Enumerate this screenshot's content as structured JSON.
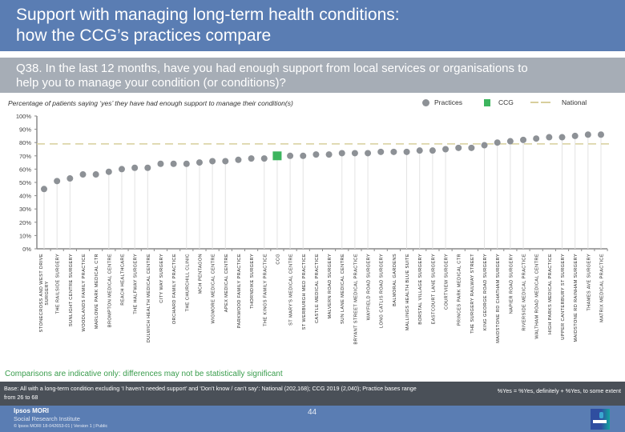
{
  "header": {
    "title_line1": "Support with managing long-term health conditions:",
    "title_line2": "how the CCG’s practices compare"
  },
  "question": {
    "line1": "Q38. In the last 12 months, have you had enough support from local services or organisations to",
    "line2": "help you to manage your condition (or conditions)?"
  },
  "legend": {
    "practices": "Practices",
    "ccg": "CCG",
    "national": "National"
  },
  "colors": {
    "practice": "#8d9196",
    "ccg": "#3db55e",
    "national": "#d8cf9c",
    "stem": "#e3e3e3",
    "axis": "#8a8a8a"
  },
  "chart_data": {
    "type": "scatter",
    "title": "Percentage of patients saying ‘yes’ they have had enough support to manage their condition(s)",
    "xlabel": "",
    "ylabel": "",
    "ylim": [
      0,
      100
    ],
    "yticks": [
      "0%",
      "10%",
      "20%",
      "30%",
      "40%",
      "50%",
      "60%",
      "70%",
      "80%",
      "90%",
      "100%"
    ],
    "grid": false,
    "legend_position": "top-right",
    "national_value": 79,
    "categories": [
      "STONECROSS AND WEST DRIVE SURGERY",
      "THE RAILSIDE SURGERY",
      "SUNLIGHT CENTRE SURGERY",
      "WOODLANDS FAMILY PRACTICE",
      "MARLOWE PARK MEDICAL CTR",
      "BROMPTON MEDICAL CENTRE",
      "REACH HEALTHCARE",
      "THE HALFWAY SURGERY",
      "DULWICH HEALTH MEDICAL CENTRE",
      "CITY WAY SURGERY",
      "ORCHARD FAMILY PRACTICE",
      "THE CHURCHILL CLINIC",
      "MCH PENTAGON",
      "WIGMORE MEDICAL CENTRE",
      "APEX MEDICAL CENTRE",
      "PARKWOOD FAMILY PRACTICE",
      "THORNDIKE SURGERY",
      "THE KINGS FAMILY PRACTICE",
      "CCG",
      "ST MARY'S MEDICAL CENTRE",
      "ST WERBURGH MED PRACTICE",
      "CASTLE MEDICAL PRACTICE",
      "MALVERN ROAD SURGERY",
      "SUN LANE MEDICAL CENTRE",
      "BRYANT STREET MEDICAL PRACTICE",
      "WAYFIELD ROAD SURGERY",
      "LONG CATLIS ROAD SURGERY",
      "BALMORAL GARDENS",
      "MALLINGS HEALTH BLUE SUITE",
      "BORSTAL VILLAGE SURGERY",
      "EASTCOURT LANE SURGERY",
      "COURTVIEW SURGERY",
      "PRINCES PARK MEDICAL CTR",
      "THE SURGERY RAILWAY STREET",
      "KING GEORGE ROAD SURGERY",
      "MAIDSTONE RD CHATHAM SURGERY",
      "NAPIER ROAD SURGERY",
      "RIVERSIDE MEDICAL PRACTICE",
      "WALTHAM ROAD MEDICAL CENTRE",
      "HIGH PARKS MEDICAL PRACTICE",
      "UPPER CANTERBURY ST SURGERY",
      "MAIDSTONE RD RAINHAM SURGERY",
      "THAMES AVE SURGERY",
      "MATRIX MEDICAL PRACTICE"
    ],
    "values": [
      45,
      51,
      53,
      56,
      56,
      58,
      60,
      61,
      61,
      64,
      64,
      64,
      65,
      66,
      66,
      67,
      68,
      68,
      70,
      70,
      70,
      71,
      71,
      72,
      72,
      72,
      73,
      73,
      73,
      74,
      74,
      75,
      76,
      76,
      78,
      80,
      81,
      82,
      83,
      84,
      84,
      85,
      86,
      86
    ],
    "ccg_index": 18,
    "stem_visible": [
      true,
      true,
      true,
      false,
      false,
      true,
      true,
      true,
      true,
      false,
      false,
      true,
      true,
      true,
      true,
      false,
      false,
      true,
      true,
      true,
      true,
      false,
      false,
      true,
      true,
      true,
      false,
      false,
      true,
      true,
      true,
      true,
      false,
      false,
      true,
      true,
      true,
      true,
      false,
      false,
      true,
      true,
      true,
      true
    ],
    "series": [
      {
        "name": "Practices",
        "marker": "circle"
      },
      {
        "name": "CCG",
        "marker": "square"
      },
      {
        "name": "National",
        "marker": "dashed-line",
        "value": 79
      }
    ]
  },
  "footer": {
    "caveat": "Comparisons are indicative only: differences may not be statistically significant",
    "base": "Base: All with a long-term condition excluding ‘I haven’t needed support’ and ‘Don’t know / can’t say’: National (202,168); CCG 2019 (2,040); Practice bases range from 26 to 68",
    "definition": "%Yes = %Yes, definitely + %Yes, to some extent",
    "org": "Ipsos MORI",
    "institute": "Social Research Institute",
    "copyright": "© Ipsos MORI     18-042653-01 | Version 1 | Public",
    "page_number": "44"
  }
}
